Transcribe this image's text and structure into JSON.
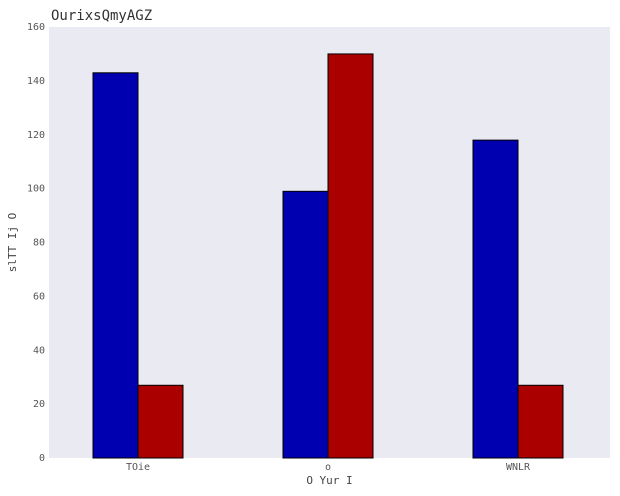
{
  "chart_data": {
    "type": "bar",
    "title": "OurixsQmyAGZ",
    "xlabel": "O   Yur I",
    "ylabel": "slTT  Ij O",
    "categories": [
      "TOie",
      "o",
      "WNLR"
    ],
    "series": [
      {
        "values": [
          143,
          99,
          118
        ],
        "color": "#0000b0"
      },
      {
        "values": [
          27,
          150,
          27
        ],
        "color": "#aa0000"
      }
    ],
    "ylim": [
      0,
      160
    ],
    "yticks": [
      0,
      20,
      40,
      60,
      80,
      100,
      120,
      140,
      160
    ],
    "grid": false,
    "legend": "none",
    "background": "#eaeaf2"
  }
}
